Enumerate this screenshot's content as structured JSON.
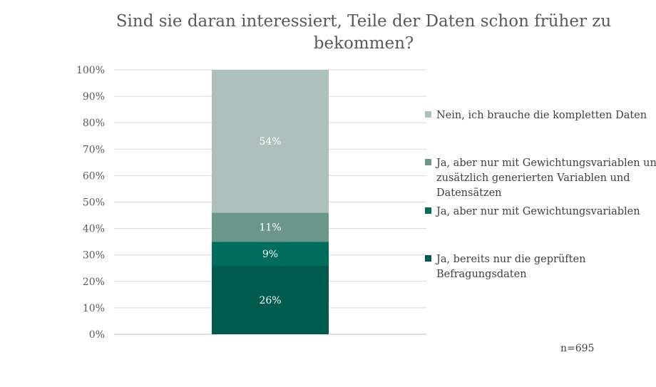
{
  "chart_data": {
    "type": "bar",
    "stacked": true,
    "title": "Sind sie daran interessiert, Teile der Daten schon früher zu bekommen?",
    "title_lines": [
      "Sind sie daran interessiert, Teile der Daten schon früher zu",
      "bekommen?"
    ],
    "categories": [
      ""
    ],
    "ylim": [
      0,
      100
    ],
    "ytick_labels": [
      "0%",
      "10%",
      "20%",
      "30%",
      "40%",
      "50%",
      "60%",
      "70%",
      "80%",
      "90%",
      "100%"
    ],
    "ytick_values": [
      0,
      10,
      20,
      30,
      40,
      50,
      60,
      70,
      80,
      90,
      100
    ],
    "series": [
      {
        "name": "Ja, bereits nur die geprüften Befragungsdaten",
        "values": [
          26
        ],
        "label": "26%",
        "color": "#005a4e"
      },
      {
        "name": "Ja, aber nur mit Gewichtungsvariablen",
        "values": [
          9
        ],
        "label": "9%",
        "color": "#006c5e"
      },
      {
        "name": "Ja, aber nur mit Gewichtungsvariablen und zusätzlich generierten Variablen und Datensätzen",
        "values": [
          11
        ],
        "label": "11%",
        "color": "#6b978b"
      },
      {
        "name": "Nein, ich brauche die kompletten Daten",
        "values": [
          54
        ],
        "label": "54%",
        "color": "#adc0bb"
      }
    ],
    "legend_position": "right",
    "grid": true,
    "annotation": "n=695"
  }
}
